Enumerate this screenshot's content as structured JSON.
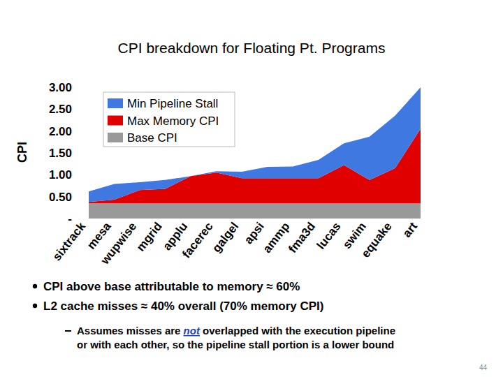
{
  "chart_data": {
    "type": "area",
    "stacked": true,
    "title": "CPI breakdown for Floating Pt. Programs",
    "y_label": "CPI",
    "categories": [
      "sixtrack",
      "mesa",
      "wupwise",
      "mgrid",
      "applu",
      "facerec",
      "galgel",
      "apsi",
      "ammp",
      "fma3d",
      "lucas",
      "swim",
      "equake",
      "art"
    ],
    "series": [
      {
        "name": "Base CPI",
        "color": "#999999",
        "values": [
          0.35,
          0.35,
          0.35,
          0.35,
          0.35,
          0.35,
          0.35,
          0.35,
          0.35,
          0.35,
          0.35,
          0.35,
          0.35,
          0.35
        ]
      },
      {
        "name": "Max Memory CPI",
        "color": "#e00000",
        "values": [
          0.03,
          0.08,
          0.3,
          0.33,
          0.62,
          0.7,
          0.57,
          0.57,
          0.57,
          0.57,
          0.87,
          0.53,
          0.8,
          1.7
        ]
      },
      {
        "name": "Min Pipeline Stall",
        "color": "#3f78e0",
        "values": [
          0.24,
          0.36,
          0.18,
          0.2,
          0.0,
          0.03,
          0.15,
          0.26,
          0.27,
          0.42,
          0.5,
          0.99,
          1.2,
          0.95
        ]
      }
    ],
    "ylim": [
      0,
      3
    ],
    "yticks": [
      {
        "value": 0,
        "label": "-"
      },
      {
        "value": 0.5,
        "label": "0.50"
      },
      {
        "value": 1,
        "label": "1.00"
      },
      {
        "value": 1.5,
        "label": "1.50"
      },
      {
        "value": 2,
        "label": "2.00"
      },
      {
        "value": 2.5,
        "label": "2.50"
      },
      {
        "value": 3,
        "label": "3.00"
      }
    ],
    "grid": false,
    "legend": "top-left"
  },
  "bullets": [
    "CPI above base attributable to memory ≈ 60%",
    "L2 cache misses ≈ 40% overall (70% memory CPI)"
  ],
  "sub_bullet": {
    "line1_before": "Assumes misses are ",
    "emphasized": "not",
    "line1_after": " overlapped with the execution pipeline",
    "line2": "or with each other, so the pipeline stall portion is a lower bound"
  },
  "page_number": "44"
}
